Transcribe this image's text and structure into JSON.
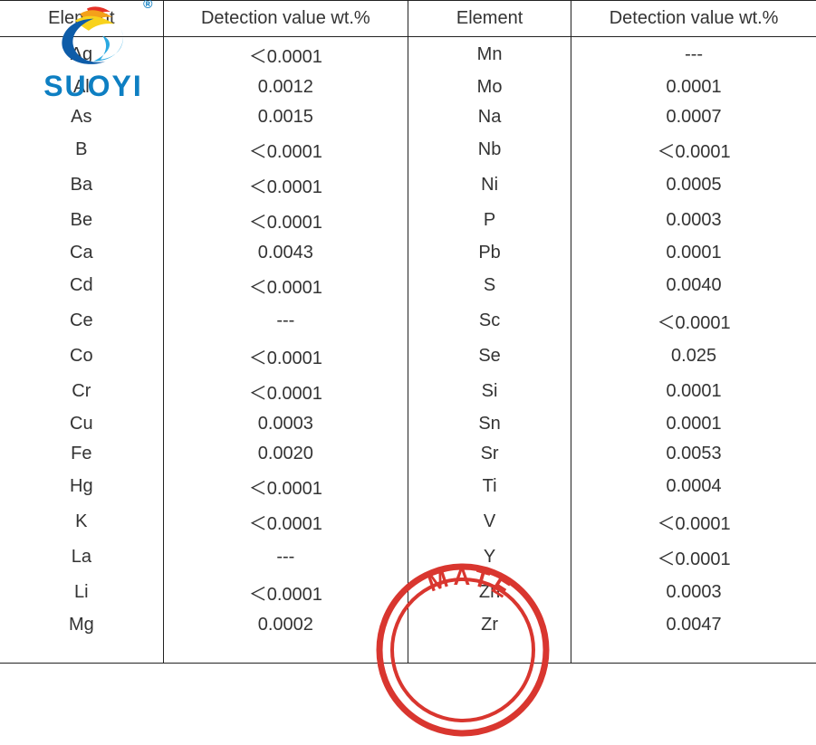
{
  "table": {
    "headers": {
      "col1": "Element",
      "col2": "Detection value wt.%",
      "col3": "Element",
      "col4": "Detection value wt.%"
    },
    "rows": [
      {
        "e1": "Ag",
        "v1": "＜0.0001",
        "e2": "Mn",
        "v2": "---"
      },
      {
        "e1": "Al",
        "v1": "0.0012",
        "e2": "Mo",
        "v2": "0.0001"
      },
      {
        "e1": "As",
        "v1": "0.0015",
        "e2": "Na",
        "v2": "0.0007"
      },
      {
        "e1": "B",
        "v1": "＜0.0001",
        "e2": "Nb",
        "v2": "＜0.0001"
      },
      {
        "e1": "Ba",
        "v1": "＜0.0001",
        "e2": "Ni",
        "v2": "0.0005"
      },
      {
        "e1": "Be",
        "v1": "＜0.0001",
        "e2": "P",
        "v2": "0.0003"
      },
      {
        "e1": "Ca",
        "v1": "0.0043",
        "e2": "Pb",
        "v2": "0.0001"
      },
      {
        "e1": "Cd",
        "v1": "＜0.0001",
        "e2": "S",
        "v2": "0.0040"
      },
      {
        "e1": "Ce",
        "v1": "---",
        "e2": "Sc",
        "v2": "＜0.0001"
      },
      {
        "e1": "Co",
        "v1": "＜0.0001",
        "e2": "Se",
        "v2": "0.025"
      },
      {
        "e1": "Cr",
        "v1": "＜0.0001",
        "e2": "Si",
        "v2": "0.0001"
      },
      {
        "e1": "Cu",
        "v1": "0.0003",
        "e2": "Sn",
        "v2": "0.0001"
      },
      {
        "e1": "Fe",
        "v1": "0.0020",
        "e2": "Sr",
        "v2": "0.0053"
      },
      {
        "e1": "Hg",
        "v1": "＜0.0001",
        "e2": "Ti",
        "v2": "0.0004"
      },
      {
        "e1": "K",
        "v1": "＜0.0001",
        "e2": "V",
        "v2": "＜0.0001"
      },
      {
        "e1": "La",
        "v1": "---",
        "e2": "Y",
        "v2": "＜0.0001"
      },
      {
        "e1": "Li",
        "v1": "＜0.0001",
        "e2": "Zn",
        "v2": "0.0003"
      },
      {
        "e1": "Mg",
        "v1": "0.0002",
        "e2": "Zr",
        "v2": "0.0047"
      }
    ],
    "header_fontsize": 20,
    "cell_fontsize": 20,
    "border_color": "#222222",
    "text_color": "#333333",
    "background_color": "#ffffff"
  },
  "logo": {
    "text": "SUOYI",
    "registered": "®",
    "text_color": "#0e7fc2",
    "swirl_colors": {
      "red": "#e63228",
      "orange": "#f4a11a",
      "yellow": "#f8d21c",
      "blue_light": "#2ba9e1",
      "blue_dark": "#0e5ca8"
    }
  },
  "stamp": {
    "visible_text": "MATE",
    "ring_color": "#d9362f",
    "text_color": "#d9362f"
  }
}
